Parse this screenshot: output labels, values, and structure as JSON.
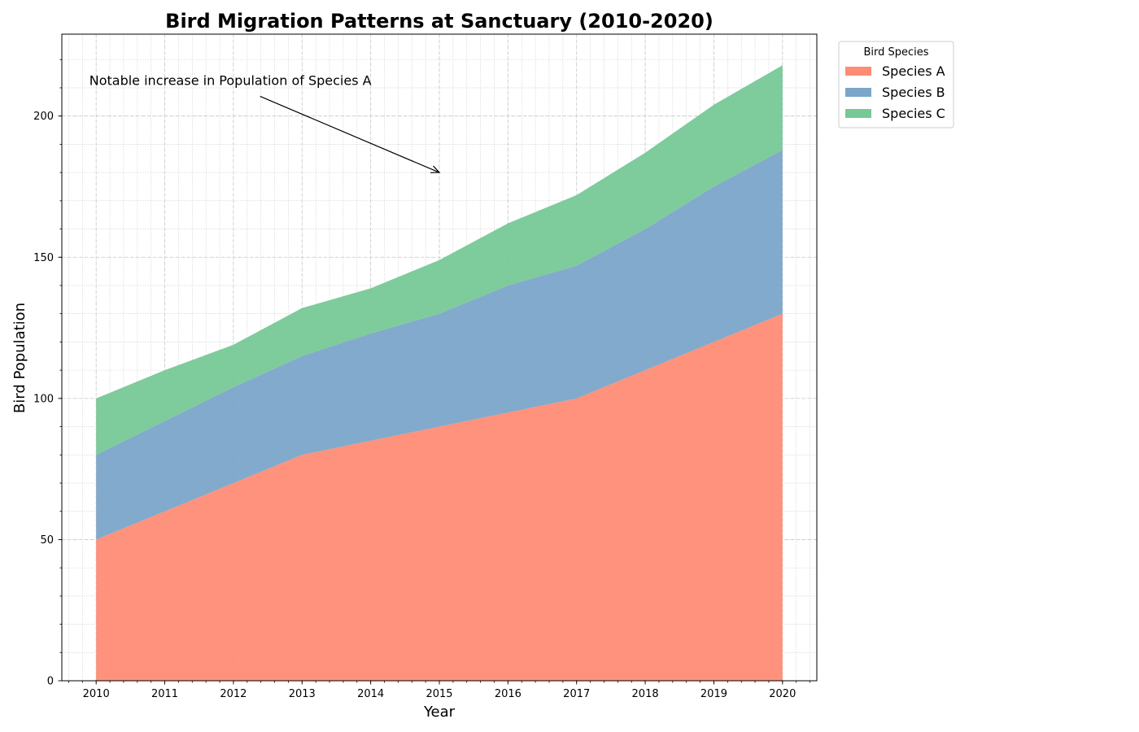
{
  "chart_data": {
    "type": "area",
    "stacked": true,
    "title": "Bird Migration Patterns at Sanctuary (2010-2020)",
    "xlabel": "Year",
    "ylabel": "Bird Population",
    "x": [
      2010,
      2011,
      2012,
      2013,
      2014,
      2015,
      2016,
      2017,
      2018,
      2019,
      2020
    ],
    "x_tick_labels": [
      "2010",
      "2011",
      "2012",
      "2013",
      "2014",
      "2015",
      "2016",
      "2017",
      "2018",
      "2019",
      "2020"
    ],
    "xlim": [
      2009.5,
      2020.5
    ],
    "ylim": [
      0,
      229
    ],
    "y_ticks": [
      0,
      50,
      100,
      150,
      200
    ],
    "y_tick_labels": [
      "0",
      "50",
      "100",
      "150",
      "200"
    ],
    "grid": true,
    "legend": {
      "title": "Bird Species",
      "placement": "outside-top-right"
    },
    "series": [
      {
        "name": "Species A",
        "color": "#ff8c75",
        "values": [
          50,
          60,
          70,
          80,
          85,
          90,
          95,
          100,
          110,
          120,
          130
        ]
      },
      {
        "name": "Species B",
        "color": "#7ba5c9",
        "values": [
          30,
          32,
          34,
          35,
          38,
          40,
          45,
          47,
          50,
          55,
          58
        ]
      },
      {
        "name": "Species C",
        "color": "#77c897",
        "values": [
          20,
          18,
          15,
          17,
          16,
          19,
          22,
          25,
          27,
          29,
          30
        ]
      }
    ],
    "annotation": {
      "text": "Notable increase in Population of Species A",
      "text_at": {
        "x": 2009.9,
        "y": 211
      },
      "arrow_to": {
        "x": 2015,
        "y": 180
      }
    }
  }
}
